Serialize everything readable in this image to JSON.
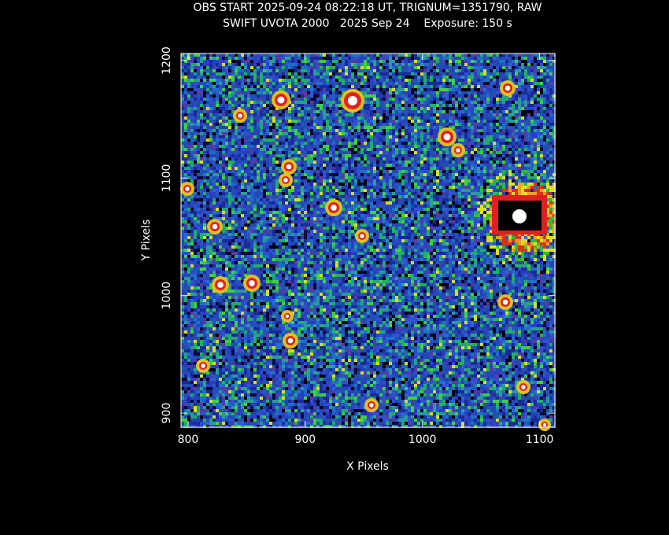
{
  "chart_data": {
    "type": "image",
    "title": "OBS START 2025-09-24 08:22:18 UT, TRIGNUM=1351790, RAW",
    "subtitle": "SWIFT UVOTA 2000   2025 Sep 24    Exposure: 150 s",
    "xlabel": "X Pixels",
    "ylabel": "Y Pixels",
    "xlim": [
      794,
      1113
    ],
    "ylim": [
      888,
      1206
    ],
    "xticks": [
      800,
      900,
      1000,
      1100
    ],
    "yticks": [
      900,
      1000,
      1100,
      1200
    ]
  }
}
